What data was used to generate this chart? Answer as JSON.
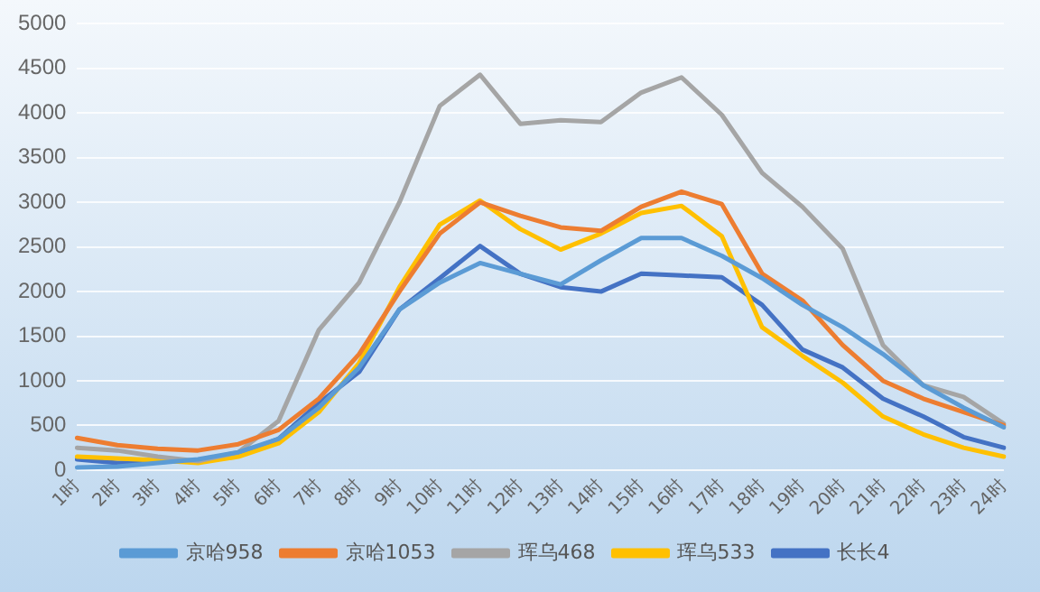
{
  "chart_data": {
    "type": "line",
    "categories": [
      "1时",
      "2时",
      "3时",
      "4时",
      "5时",
      "6时",
      "7时",
      "8时",
      "9时",
      "10时",
      "11时",
      "12时",
      "13时",
      "14时",
      "15时",
      "16时",
      "17时",
      "18时",
      "19时",
      "20时",
      "21时",
      "22时",
      "23时",
      "24时"
    ],
    "series": [
      {
        "name": "京哈958",
        "color": "#5b9bd5",
        "values": [
          30,
          40,
          80,
          120,
          200,
          350,
          700,
          1150,
          1800,
          2100,
          2320,
          2200,
          2080,
          2350,
          2600,
          2600,
          2400,
          2150,
          1850,
          1600,
          1300,
          950,
          700,
          480
        ]
      },
      {
        "name": "京哈1053",
        "color": "#ed7d31",
        "values": [
          360,
          280,
          240,
          220,
          290,
          450,
          800,
          1300,
          2000,
          2650,
          3000,
          2850,
          2720,
          2680,
          2950,
          3120,
          2980,
          2200,
          1900,
          1400,
          1000,
          800,
          650,
          500
        ]
      },
      {
        "name": "珲乌468",
        "color": "#a5a5a5",
        "values": [
          250,
          220,
          150,
          100,
          200,
          550,
          1570,
          2100,
          3000,
          4080,
          4430,
          3880,
          3920,
          3900,
          4230,
          4400,
          3980,
          3330,
          2950,
          2480,
          1400,
          950,
          820,
          520
        ]
      },
      {
        "name": "珲乌533",
        "color": "#ffc000",
        "values": [
          150,
          130,
          110,
          80,
          150,
          300,
          650,
          1200,
          2050,
          2750,
          3020,
          2700,
          2470,
          2650,
          2880,
          2960,
          2620,
          1600,
          1280,
          980,
          600,
          400,
          250,
          150
        ]
      },
      {
        "name": "长长4",
        "color": "#4472c4",
        "values": [
          120,
          80,
          90,
          110,
          180,
          350,
          750,
          1100,
          1800,
          2150,
          2510,
          2200,
          2050,
          2000,
          2200,
          2180,
          2160,
          1850,
          1350,
          1150,
          800,
          600,
          370,
          250
        ]
      }
    ],
    "ylim": [
      0,
      5000
    ],
    "yticks": [
      0,
      500,
      1000,
      1500,
      2000,
      2500,
      3000,
      3500,
      4000,
      4500,
      5000
    ],
    "grid": "y",
    "legend": "bottom",
    "marker": "none",
    "line_style": "solid"
  }
}
